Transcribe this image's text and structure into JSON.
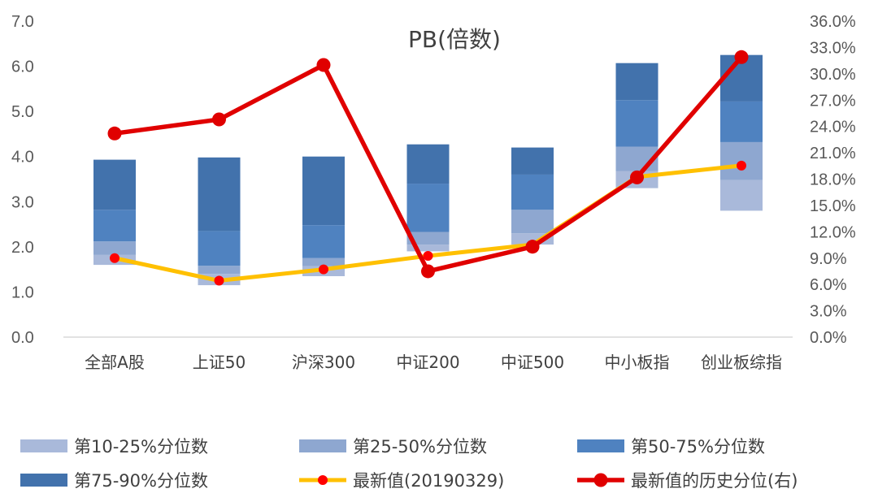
{
  "chart_data": {
    "type": "bar",
    "title": "PB(倍数)",
    "categories": [
      "全部A股",
      "上证50",
      "沪深300",
      "中证200",
      "中证500",
      "中小板指",
      "创业板综指"
    ],
    "left_axis": {
      "ylim": [
        0,
        7
      ],
      "ticks": [
        "0.0",
        "1.0",
        "2.0",
        "3.0",
        "4.0",
        "5.0",
        "6.0",
        "7.0"
      ]
    },
    "right_axis": {
      "ylim": [
        0,
        36
      ],
      "ticks": [
        "0.0%",
        "3.0%",
        "6.0%",
        "9.0%",
        "12.0%",
        "15.0%",
        "18.0%",
        "21.0%",
        "24.0%",
        "27.0%",
        "30.0%",
        "33.0%",
        "36.0%"
      ]
    },
    "percentile_boundaries": {
      "p10": [
        1.6,
        1.15,
        1.35,
        1.9,
        2.05,
        3.3,
        2.8
      ],
      "p25": [
        1.82,
        1.4,
        1.57,
        2.05,
        2.3,
        3.68,
        3.48
      ],
      "p50": [
        2.12,
        1.58,
        1.75,
        2.33,
        2.82,
        4.22,
        4.32
      ],
      "p75": [
        2.82,
        2.35,
        2.48,
        3.4,
        3.6,
        5.25,
        5.22
      ],
      "p90": [
        3.93,
        3.98,
        4.0,
        4.27,
        4.2,
        6.07,
        6.25
      ]
    },
    "series": [
      {
        "name": "第10-25%分位数",
        "kind": "band",
        "color": "#a9b9da"
      },
      {
        "name": "第25-50%分位数",
        "kind": "band",
        "color": "#8ea7d0"
      },
      {
        "name": "第50-75%分位数",
        "kind": "band",
        "color": "#4f82c0"
      },
      {
        "name": "第75-90%分位数",
        "kind": "band",
        "color": "#4272ac"
      },
      {
        "name": "最新值(20190329)",
        "kind": "line",
        "axis": "left",
        "color": "#ffc000",
        "marker_color": "#ff0000",
        "values": [
          1.75,
          1.25,
          1.5,
          1.8,
          2.05,
          3.55,
          3.8
        ]
      },
      {
        "name": "最新值的历史分位(右)",
        "kind": "line",
        "axis": "right",
        "color": "#e00000",
        "values": [
          23.2,
          24.8,
          31.0,
          7.5,
          10.3,
          18.2,
          31.9
        ]
      }
    ],
    "legend_position": "bottom",
    "grid": false
  }
}
